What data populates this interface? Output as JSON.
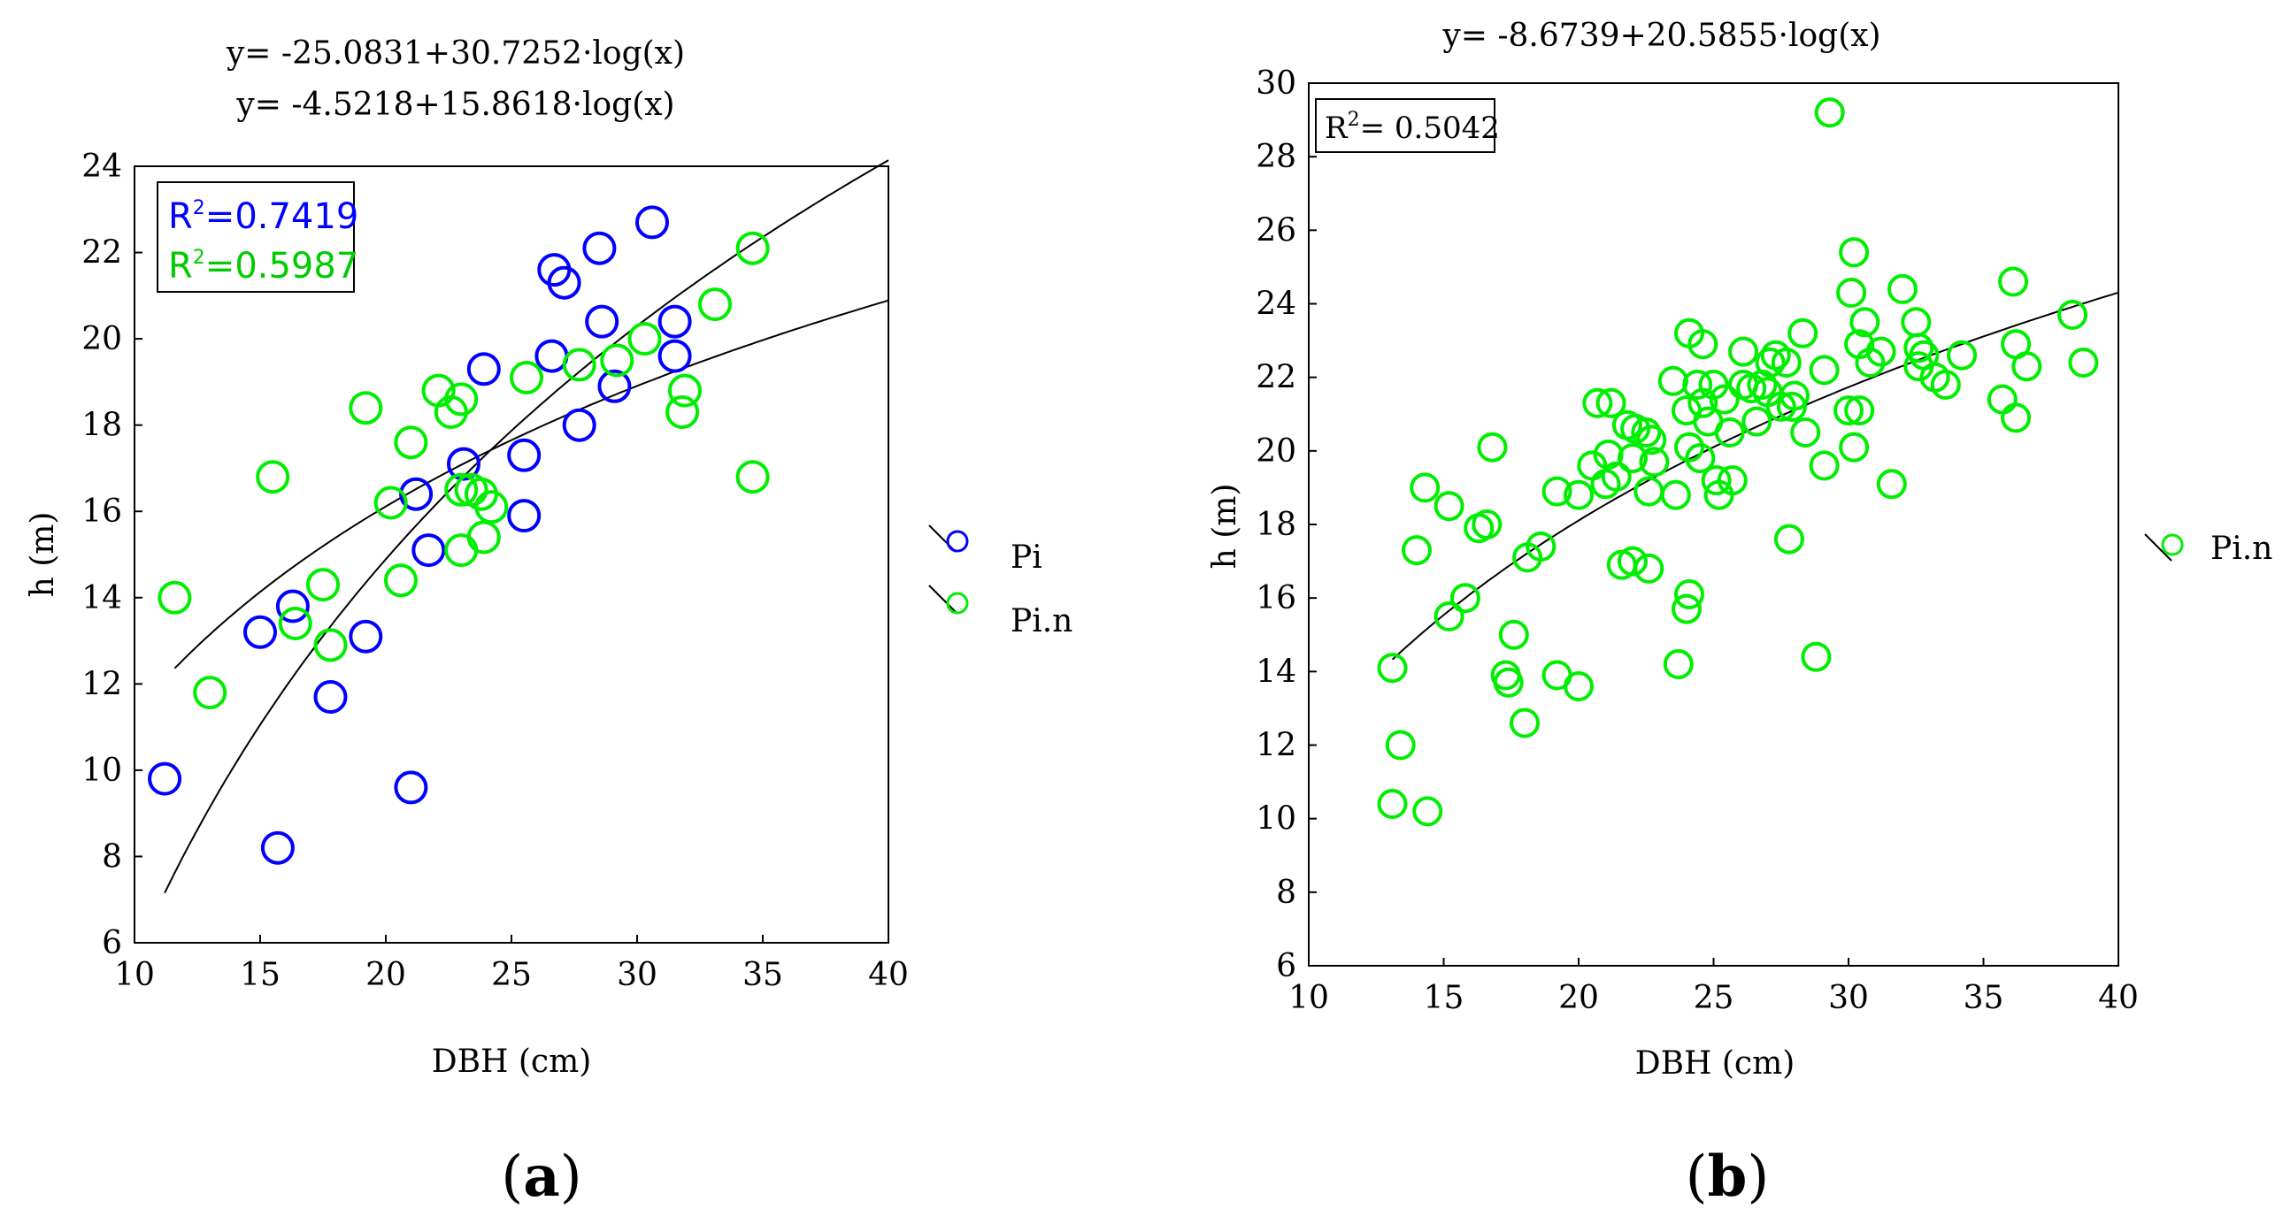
{
  "colors": {
    "pi": "#0000ff",
    "pin": "#00ee00",
    "line": "#000000"
  },
  "chart_data": [
    {
      "panel": "a",
      "type": "scatter",
      "panel_label": "a",
      "xlabel": "DBH (cm)",
      "ylabel": "h (m)",
      "xlim": [
        10,
        40
      ],
      "ylim": [
        6,
        24
      ],
      "xticks": [
        10,
        15,
        20,
        25,
        30,
        35,
        40
      ],
      "yticks": [
        6,
        8,
        10,
        12,
        14,
        16,
        18,
        20,
        22,
        24
      ],
      "equations": [
        "y= -25.0831+30.7252·log(x)",
        "y= -4.5218+15.8618·log(x)"
      ],
      "r2": [
        {
          "label": "R",
          "sup": "2",
          "value": "=0.7419",
          "series": "Pi"
        },
        {
          "label": "R",
          "sup": "2",
          "value": "=0.5987",
          "series": "Pi.n"
        }
      ],
      "legend": [
        "Pi",
        "Pi.n"
      ],
      "fits": [
        {
          "series": "Pi",
          "a": -25.0831,
          "b": 30.7252,
          "xrange": [
            11.2,
            40
          ]
        },
        {
          "series": "Pi.n",
          "a": -4.5218,
          "b": 15.8618,
          "xrange": [
            11.6,
            40
          ]
        }
      ],
      "series": [
        {
          "name": "Pi",
          "points": [
            [
              11.2,
              9.8
            ],
            [
              15.0,
              13.2
            ],
            [
              15.7,
              8.2
            ],
            [
              16.3,
              13.8
            ],
            [
              17.8,
              11.7
            ],
            [
              19.2,
              13.1
            ],
            [
              21.0,
              9.6
            ],
            [
              21.2,
              16.4
            ],
            [
              21.7,
              15.1
            ],
            [
              23.1,
              17.1
            ],
            [
              23.9,
              19.3
            ],
            [
              25.5,
              15.9
            ],
            [
              25.5,
              17.3
            ],
            [
              26.6,
              19.6
            ],
            [
              26.7,
              21.6
            ],
            [
              27.1,
              21.3
            ],
            [
              27.7,
              18.0
            ],
            [
              28.5,
              22.1
            ],
            [
              28.6,
              20.4
            ],
            [
              29.1,
              18.9
            ],
            [
              30.6,
              22.7
            ],
            [
              31.5,
              20.4
            ],
            [
              31.5,
              19.6
            ]
          ]
        },
        {
          "name": "Pi.n",
          "points": [
            [
              11.6,
              14.0
            ],
            [
              13.0,
              11.8
            ],
            [
              15.5,
              16.8
            ],
            [
              16.4,
              13.4
            ],
            [
              17.5,
              14.3
            ],
            [
              17.8,
              12.9
            ],
            [
              19.2,
              18.4
            ],
            [
              20.2,
              16.2
            ],
            [
              20.6,
              14.4
            ],
            [
              21.0,
              17.6
            ],
            [
              22.1,
              18.8
            ],
            [
              22.6,
              18.3
            ],
            [
              23.0,
              18.6
            ],
            [
              23.0,
              16.5
            ],
            [
              23.0,
              15.1
            ],
            [
              23.4,
              16.5
            ],
            [
              23.8,
              16.4
            ],
            [
              23.9,
              15.4
            ],
            [
              24.2,
              16.1
            ],
            [
              25.6,
              19.1
            ],
            [
              27.7,
              19.4
            ],
            [
              29.2,
              19.5
            ],
            [
              30.3,
              20.0
            ],
            [
              31.8,
              18.3
            ],
            [
              31.9,
              18.8
            ],
            [
              33.1,
              20.8
            ],
            [
              34.6,
              22.1
            ],
            [
              34.6,
              16.8
            ]
          ]
        }
      ]
    },
    {
      "panel": "b",
      "type": "scatter",
      "panel_label": "b",
      "xlabel": "DBH (cm)",
      "ylabel": "h (m)",
      "xlim": [
        10,
        40
      ],
      "ylim": [
        6,
        30
      ],
      "xticks": [
        10,
        15,
        20,
        25,
        30,
        35,
        40
      ],
      "yticks": [
        6,
        8,
        10,
        12,
        14,
        16,
        18,
        20,
        22,
        24,
        26,
        28,
        30
      ],
      "equations": [
        "y= -8.6739+20.5855·log(x)"
      ],
      "r2": [
        {
          "label": "R",
          "sup": "2",
          "value": "= 0.5042",
          "series": "Pi.n"
        }
      ],
      "legend": [
        "Pi.n"
      ],
      "fits": [
        {
          "series": "Pi.n",
          "a": -8.6739,
          "b": 20.5855,
          "xrange": [
            13.1,
            40
          ]
        }
      ],
      "series": [
        {
          "name": "Pi.n",
          "points": [
            [
              13.1,
              10.4
            ],
            [
              13.1,
              14.1
            ],
            [
              13.4,
              12.0
            ],
            [
              14.0,
              17.3
            ],
            [
              14.3,
              19.0
            ],
            [
              14.4,
              10.2
            ],
            [
              15.2,
              18.5
            ],
            [
              15.2,
              15.5
            ],
            [
              15.8,
              16.0
            ],
            [
              16.3,
              17.9
            ],
            [
              16.6,
              18.0
            ],
            [
              16.8,
              20.1
            ],
            [
              17.3,
              13.9
            ],
            [
              17.4,
              13.7
            ],
            [
              17.6,
              15.0
            ],
            [
              18.0,
              12.6
            ],
            [
              18.1,
              17.1
            ],
            [
              18.6,
              17.4
            ],
            [
              19.2,
              18.9
            ],
            [
              19.2,
              13.9
            ],
            [
              20.0,
              18.8
            ],
            [
              20.0,
              13.6
            ],
            [
              20.5,
              19.6
            ],
            [
              20.7,
              21.3
            ],
            [
              21.0,
              19.1
            ],
            [
              21.1,
              19.9
            ],
            [
              21.2,
              21.3
            ],
            [
              21.4,
              19.3
            ],
            [
              21.6,
              16.9
            ],
            [
              21.8,
              20.7
            ],
            [
              22.0,
              17.0
            ],
            [
              22.0,
              19.8
            ],
            [
              22.1,
              20.6
            ],
            [
              22.5,
              20.5
            ],
            [
              22.6,
              16.8
            ],
            [
              22.6,
              18.9
            ],
            [
              22.7,
              20.3
            ],
            [
              22.8,
              19.7
            ],
            [
              23.5,
              21.9
            ],
            [
              23.6,
              18.8
            ],
            [
              23.7,
              14.2
            ],
            [
              24.0,
              15.7
            ],
            [
              24.0,
              21.1
            ],
            [
              24.1,
              23.2
            ],
            [
              24.1,
              20.1
            ],
            [
              24.1,
              16.1
            ],
            [
              24.4,
              21.8
            ],
            [
              24.5,
              19.8
            ],
            [
              24.6,
              22.9
            ],
            [
              24.6,
              21.3
            ],
            [
              24.8,
              20.8
            ],
            [
              25.0,
              21.8
            ],
            [
              25.1,
              19.2
            ],
            [
              25.2,
              18.8
            ],
            [
              25.4,
              21.4
            ],
            [
              25.6,
              20.5
            ],
            [
              25.7,
              19.2
            ],
            [
              26.1,
              22.7
            ],
            [
              26.1,
              21.8
            ],
            [
              26.4,
              21.7
            ],
            [
              26.6,
              20.8
            ],
            [
              26.8,
              21.8
            ],
            [
              27.0,
              21.6
            ],
            [
              27.1,
              22.4
            ],
            [
              27.3,
              22.6
            ],
            [
              27.5,
              21.2
            ],
            [
              27.7,
              22.4
            ],
            [
              27.8,
              17.6
            ],
            [
              27.9,
              21.2
            ],
            [
              28.0,
              21.5
            ],
            [
              28.3,
              23.2
            ],
            [
              28.4,
              20.5
            ],
            [
              28.8,
              14.4
            ],
            [
              29.1,
              19.6
            ],
            [
              29.1,
              22.2
            ],
            [
              29.3,
              29.2
            ],
            [
              30.0,
              21.1
            ],
            [
              30.1,
              24.3
            ],
            [
              30.2,
              25.4
            ],
            [
              30.2,
              20.1
            ],
            [
              30.4,
              21.1
            ],
            [
              30.4,
              22.9
            ],
            [
              30.6,
              23.5
            ],
            [
              30.8,
              22.4
            ],
            [
              31.2,
              22.7
            ],
            [
              31.6,
              19.1
            ],
            [
              32.0,
              24.4
            ],
            [
              32.5,
              23.5
            ],
            [
              32.6,
              22.8
            ],
            [
              32.6,
              22.3
            ],
            [
              32.8,
              22.6
            ],
            [
              33.2,
              22.0
            ],
            [
              33.6,
              21.8
            ],
            [
              34.2,
              22.6
            ],
            [
              35.7,
              21.4
            ],
            [
              36.1,
              24.6
            ],
            [
              36.2,
              20.9
            ],
            [
              36.2,
              22.9
            ],
            [
              36.6,
              22.3
            ],
            [
              38.3,
              23.7
            ],
            [
              38.7,
              22.4
            ]
          ]
        }
      ]
    }
  ]
}
